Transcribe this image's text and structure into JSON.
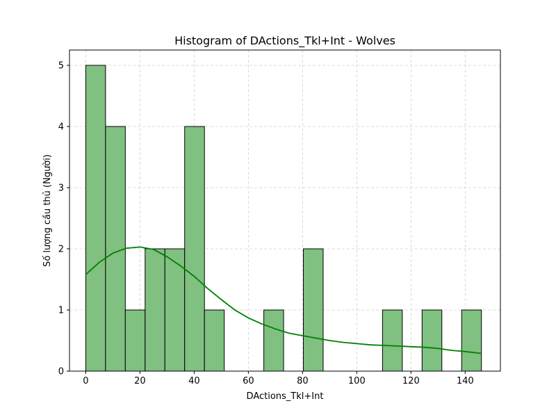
{
  "chart_data": {
    "type": "bar",
    "title": "Histogram of DActions_Tkl+Int - Wolves",
    "xlabel": "DActions_Tkl+Int",
    "ylabel": "Số lượng cầu thủ (Người)",
    "xlim": [
      -6,
      153
    ],
    "ylim": [
      0,
      5.25
    ],
    "xticks": [
      0,
      20,
      40,
      60,
      80,
      100,
      120,
      140
    ],
    "yticks": [
      0,
      1,
      2,
      3,
      4,
      5
    ],
    "grid": true,
    "bins": [
      {
        "x0": 0,
        "x1": 7.3,
        "count": 5
      },
      {
        "x0": 7.3,
        "x1": 14.6,
        "count": 4
      },
      {
        "x0": 14.6,
        "x1": 21.9,
        "count": 1
      },
      {
        "x0": 21.9,
        "x1": 29.2,
        "count": 2
      },
      {
        "x0": 29.2,
        "x1": 36.5,
        "count": 2
      },
      {
        "x0": 36.5,
        "x1": 43.8,
        "count": 4
      },
      {
        "x0": 43.8,
        "x1": 51.1,
        "count": 1
      },
      {
        "x0": 51.1,
        "x1": 58.4,
        "count": 0
      },
      {
        "x0": 58.4,
        "x1": 65.7,
        "count": 0
      },
      {
        "x0": 65.7,
        "x1": 73.0,
        "count": 1
      },
      {
        "x0": 73.0,
        "x1": 80.3,
        "count": 0
      },
      {
        "x0": 80.3,
        "x1": 87.6,
        "count": 2
      },
      {
        "x0": 87.6,
        "x1": 94.9,
        "count": 0
      },
      {
        "x0": 94.9,
        "x1": 102.2,
        "count": 0
      },
      {
        "x0": 102.2,
        "x1": 109.5,
        "count": 0
      },
      {
        "x0": 109.5,
        "x1": 116.8,
        "count": 1
      },
      {
        "x0": 116.8,
        "x1": 124.1,
        "count": 0
      },
      {
        "x0": 124.1,
        "x1": 131.4,
        "count": 1
      },
      {
        "x0": 131.4,
        "x1": 138.7,
        "count": 0
      },
      {
        "x0": 138.7,
        "x1": 146.0,
        "count": 1
      }
    ],
    "kde": {
      "x": [
        0,
        5,
        10,
        15,
        20,
        25,
        30,
        35,
        40,
        45,
        50,
        55,
        60,
        65,
        70,
        75,
        80,
        85,
        90,
        95,
        100,
        105,
        110,
        115,
        120,
        125,
        130,
        135,
        140,
        146
      ],
      "y": [
        1.58,
        1.78,
        1.93,
        2.01,
        2.03,
        1.99,
        1.87,
        1.72,
        1.55,
        1.35,
        1.17,
        1.0,
        0.87,
        0.77,
        0.69,
        0.62,
        0.58,
        0.54,
        0.5,
        0.47,
        0.45,
        0.43,
        0.42,
        0.41,
        0.4,
        0.39,
        0.37,
        0.34,
        0.32,
        0.29
      ]
    },
    "colors": {
      "bar_fill": "#80c080",
      "bar_edge": "#000000",
      "kde_line": "#008000",
      "grid": "#d0d0d0"
    }
  }
}
